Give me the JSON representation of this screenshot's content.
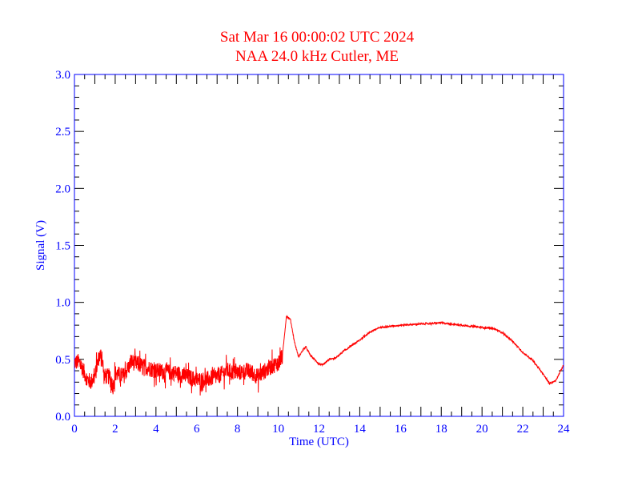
{
  "chart_data": {
    "type": "line",
    "title": "Sat Mar 16 00:00:02 UTC 2024",
    "subtitle": "NAA 24.0 kHz Cutler, ME",
    "xlabel": "Time (UTC)",
    "ylabel": "Signal (V)",
    "xlim": [
      0,
      24
    ],
    "ylim": [
      0,
      3.0
    ],
    "xticks": [
      "0",
      "2",
      "4",
      "6",
      "8",
      "10",
      "12",
      "14",
      "16",
      "18",
      "20",
      "22",
      "24"
    ],
    "yticks": [
      "0.0",
      "0.5",
      "1.0",
      "1.5",
      "2.0",
      "2.5",
      "3.0"
    ],
    "grid": false,
    "colors": {
      "line": "#ff0000",
      "axis": "#0000ff",
      "ticks": "#000000",
      "title": "#ff0000"
    },
    "series": [
      {
        "name": "NAA signal",
        "points": [
          [
            0,
            0.47
          ],
          [
            0.2,
            0.48
          ],
          [
            0.4,
            0.42
          ],
          [
            0.6,
            0.33
          ],
          [
            0.8,
            0.3
          ],
          [
            1.0,
            0.35
          ],
          [
            1.2,
            0.52
          ],
          [
            1.35,
            0.55
          ],
          [
            1.45,
            0.35
          ],
          [
            1.7,
            0.35
          ],
          [
            1.9,
            0.26
          ],
          [
            2.0,
            0.38
          ],
          [
            2.4,
            0.35
          ],
          [
            2.8,
            0.48
          ],
          [
            3.2,
            0.45
          ],
          [
            4,
            0.4
          ],
          [
            5,
            0.38
          ],
          [
            6,
            0.32
          ],
          [
            6.5,
            0.32
          ],
          [
            7,
            0.35
          ],
          [
            7.5,
            0.4
          ],
          [
            8,
            0.38
          ],
          [
            8.5,
            0.4
          ],
          [
            9,
            0.35
          ],
          [
            9.5,
            0.42
          ],
          [
            10,
            0.47
          ],
          [
            10.2,
            0.52
          ],
          [
            10.4,
            0.88
          ],
          [
            10.6,
            0.85
          ],
          [
            10.8,
            0.65
          ],
          [
            11,
            0.52
          ],
          [
            11.2,
            0.58
          ],
          [
            11.35,
            0.61
          ],
          [
            11.6,
            0.53
          ],
          [
            12,
            0.46
          ],
          [
            12.2,
            0.45
          ],
          [
            12.5,
            0.5
          ],
          [
            12.8,
            0.51
          ],
          [
            13.2,
            0.57
          ],
          [
            14,
            0.67
          ],
          [
            14.5,
            0.74
          ],
          [
            15,
            0.78
          ],
          [
            16,
            0.8
          ],
          [
            17,
            0.81
          ],
          [
            18,
            0.82
          ],
          [
            19,
            0.8
          ],
          [
            20,
            0.78
          ],
          [
            20.6,
            0.77
          ],
          [
            21,
            0.73
          ],
          [
            21.5,
            0.66
          ],
          [
            22,
            0.56
          ],
          [
            22.5,
            0.49
          ],
          [
            23,
            0.37
          ],
          [
            23.3,
            0.29
          ],
          [
            23.6,
            0.31
          ],
          [
            24,
            0.45
          ]
        ],
        "noise": [
          {
            "from": 0,
            "to": 10.2,
            "amplitude": 0.12
          },
          {
            "from": 10.2,
            "to": 24,
            "amplitude": 0.012
          }
        ]
      }
    ]
  }
}
